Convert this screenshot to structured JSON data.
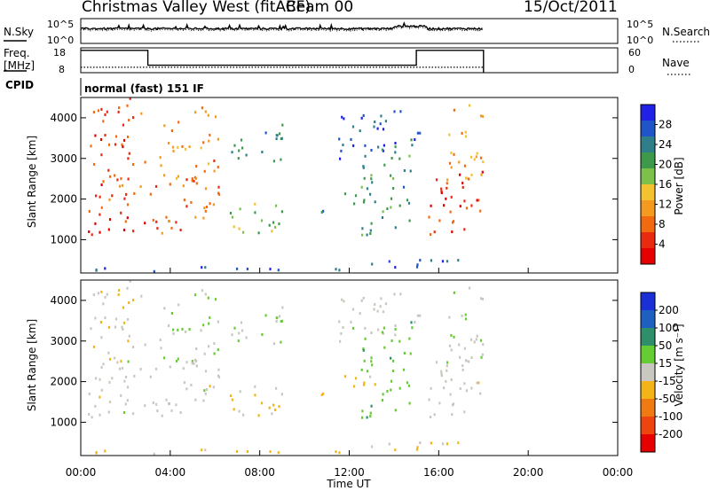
{
  "header": {
    "title": "Christmas Valley West (fitACF)",
    "beam": "Beam 00",
    "date": "15/Oct/2011"
  },
  "top_panels": {
    "nsky_label": "N.Sky",
    "nsky_ticks": [
      "10^5",
      "10^0"
    ],
    "nsearch_label": "N.Search",
    "nsearch_ticks": [
      "10^5",
      "10^0"
    ],
    "freq_label": "Freq.",
    "freq_unit": "[MHz]",
    "freq_ticks": [
      "18",
      "8"
    ],
    "nave_label": "Nave",
    "nave_ticks": [
      "60",
      "0"
    ],
    "cpid_label": "CPID",
    "cpid_value": "normal (fast) 151 IF"
  },
  "x_axis": {
    "label": "Time UT",
    "ticks": [
      "00:00",
      "04:00",
      "08:00",
      "12:00",
      "16:00",
      "20:00",
      "00:00"
    ]
  },
  "y_axis_label": "Slant Range [km]",
  "y_ticks": [
    "1000",
    "2000",
    "3000",
    "4000"
  ],
  "power_colorbar": {
    "label": "Power [dB]",
    "ticks": [
      "28",
      "24",
      "20",
      "16",
      "12",
      "8",
      "4"
    ],
    "colors": [
      "#2020e6",
      "#1f55c8",
      "#2f7f8a",
      "#3e9a4a",
      "#7cc24a",
      "#f2c230",
      "#f59a20",
      "#f26a10",
      "#e82a10",
      "#e60000"
    ]
  },
  "velocity_colorbar": {
    "label": "Velocity [m s⁻¹]",
    "ticks": [
      "200",
      "100",
      "50",
      "15",
      "-15",
      "-50",
      "-100",
      "-200"
    ],
    "colors": [
      "#1a2fd6",
      "#1f5fbf",
      "#2e8f6a",
      "#66cc33",
      "#c8c8c0",
      "#f2b418",
      "#f07a12",
      "#ee4410",
      "#e60000"
    ]
  },
  "chart_data": {
    "type": "heatmap",
    "x": {
      "unit": "hours UT",
      "range": [
        0,
        24
      ],
      "data_end": 18
    },
    "y": {
      "unit": "km",
      "range": [
        180,
        4500
      ]
    },
    "nsky": {
      "range": [
        1,
        100000
      ],
      "scale": "log",
      "level": 1000
    },
    "freq": {
      "unit": "MHz",
      "range": [
        8,
        18
      ],
      "segments": [
        {
          "from": 0,
          "to": 3,
          "value": 17
        },
        {
          "from": 3,
          "to": 15,
          "value": 11
        },
        {
          "from": 15,
          "to": 18,
          "value": 17
        }
      ]
    },
    "nave": {
      "range": [
        0,
        60
      ],
      "value": 13
    },
    "power_range": [
      0,
      32
    ],
    "velocity_range": [
      -250,
      250
    ],
    "echo_bands": [
      {
        "t0": 0.0,
        "t1": 2.9,
        "r0": 1000,
        "r1": 1550,
        "power": 28,
        "velocity": 0
      },
      {
        "t0": 0.1,
        "t1": 2.9,
        "r0": 1500,
        "r1": 2600,
        "power": 25,
        "velocity": 0
      },
      {
        "t0": 0.3,
        "t1": 2.9,
        "r0": 2700,
        "r1": 4400,
        "power": 26,
        "velocity": -20
      },
      {
        "t0": 3.0,
        "t1": 6.2,
        "r0": 1150,
        "r1": 2400,
        "power": 24,
        "velocity": 0
      },
      {
        "t0": 3.5,
        "t1": 6.2,
        "r0": 2400,
        "r1": 4300,
        "power": 22,
        "velocity": 20
      },
      {
        "t0": 6.2,
        "t1": 9.3,
        "r0": 1100,
        "r1": 1850,
        "power": 14,
        "velocity": -40
      },
      {
        "t0": 6.5,
        "t1": 9.0,
        "r0": 2700,
        "r1": 3700,
        "power": 9,
        "velocity": 30
      },
      {
        "t0": 10.0,
        "t1": 13.3,
        "r0": 1700,
        "r1": 2100,
        "power": 8,
        "velocity": -50
      },
      {
        "t0": 11.5,
        "t1": 15.2,
        "r0": 3000,
        "r1": 4200,
        "power": 6,
        "velocity": 10
      },
      {
        "t0": 12.5,
        "t1": 14.8,
        "r0": 1100,
        "r1": 3400,
        "power": 10,
        "velocity": 60
      },
      {
        "t0": 15.3,
        "t1": 18.0,
        "r0": 1050,
        "r1": 2600,
        "power": 27,
        "velocity": 0
      },
      {
        "t0": 16.2,
        "t1": 18.0,
        "r0": 2300,
        "r1": 4300,
        "power": 20,
        "velocity": 20
      },
      {
        "t0": 0.0,
        "t1": 18.0,
        "r0": 180,
        "r1": 380,
        "power": 6,
        "velocity": -40
      }
    ]
  }
}
